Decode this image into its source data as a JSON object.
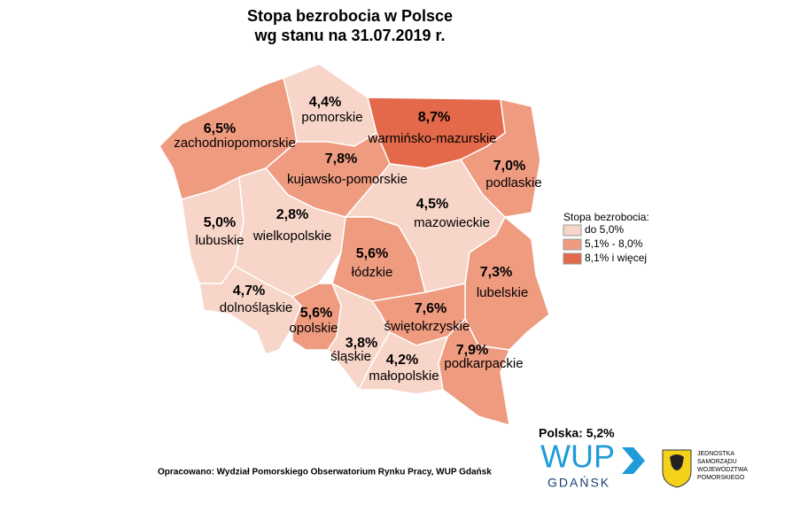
{
  "title": [
    "Stopa bezrobocia w Polsce",
    "wg stanu na 31.07.2019 r."
  ],
  "regions": [
    {
      "name": "zachodniopomorskie",
      "value": "6,5%",
      "color": "#ee9b80"
    },
    {
      "name": "pomorskie",
      "value": "4,4%",
      "color": "#f7d5c8"
    },
    {
      "name": "warmińsko-mazurskie",
      "value": "8,7%",
      "color": "#e4694a"
    },
    {
      "name": "podlaskie",
      "value": "7,0%",
      "color": "#ee9b80"
    },
    {
      "name": "kujawsko-pomorskie",
      "value": "7,8%",
      "color": "#ee9b80"
    },
    {
      "name": "lubuskie",
      "value": "5,0%",
      "color": "#f7d5c8"
    },
    {
      "name": "wielkopolskie",
      "value": "2,8%",
      "color": "#f7d5c8"
    },
    {
      "name": "mazowieckie",
      "value": "4,5%",
      "color": "#f7d5c8"
    },
    {
      "name": "łódzkie",
      "value": "5,6%",
      "color": "#ee9b80"
    },
    {
      "name": "lubelskie",
      "value": "7,3%",
      "color": "#ee9b80"
    },
    {
      "name": "dolnośląskie",
      "value": "4,7%",
      "color": "#f7d5c8"
    },
    {
      "name": "opolskie",
      "value": "5,6%",
      "color": "#ee9b80"
    },
    {
      "name": "świętokrzyskie",
      "value": "7,6%",
      "color": "#ee9b80"
    },
    {
      "name": "śląskie",
      "value": "3,8%",
      "color": "#f7d5c8"
    },
    {
      "name": "małopolskie",
      "value": "4,2%",
      "color": "#f7d5c8"
    },
    {
      "name": "podkarpackie",
      "value": "7,9%",
      "color": "#ee9b80"
    }
  ],
  "legend": {
    "title": "Stopa bezrobocia:",
    "items": [
      {
        "label": "do 5,0%",
        "color": "#f7d5c8"
      },
      {
        "label": "5,1% - 8,0%",
        "color": "#ee9b80"
      },
      {
        "label": "8,1% i więcej",
        "color": "#e4694a"
      }
    ]
  },
  "total": "Polska: 5,2%",
  "source": "Opracowano: Wydział Pomorskiego Obserwatorium Rynku Pracy, WUP Gdańsk",
  "logo": {
    "name": "WUP",
    "city": "GDAŃSK"
  },
  "emblem": [
    "JEDNOSTKA",
    "SAMORZĄDU",
    "WOJEWÓDZTWA",
    "POMORSKIEGO"
  ]
}
